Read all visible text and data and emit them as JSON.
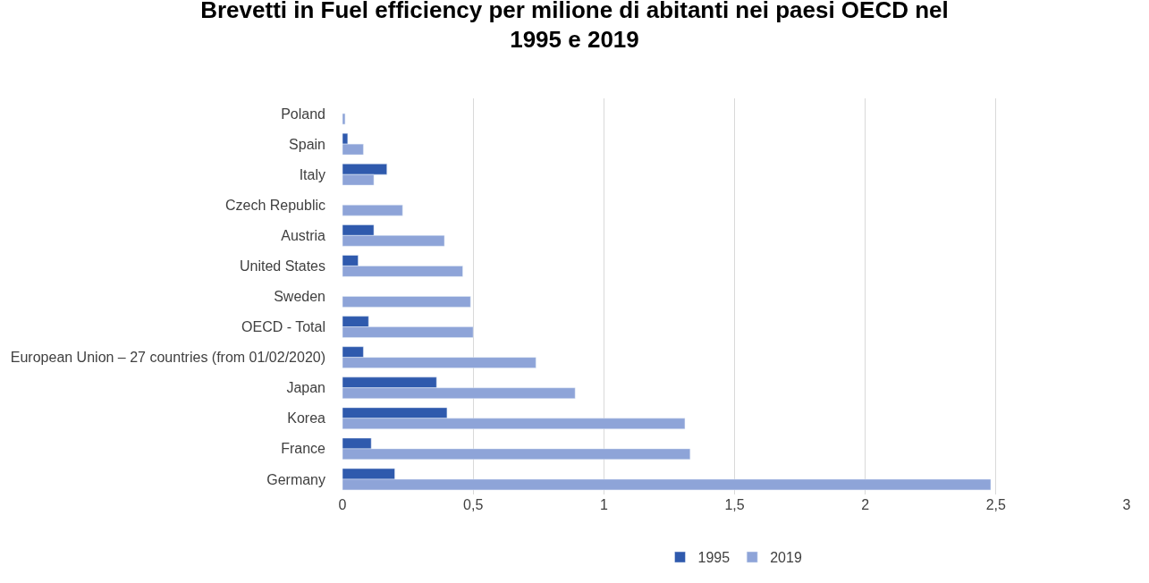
{
  "chart_data": {
    "type": "bar",
    "orientation": "horizontal",
    "title": "Brevetti in Fuel efficiency per milione di abitanti nei paesi OECD nel 1995 e 2019",
    "categories": [
      "Poland",
      "Spain",
      "Italy",
      "Czech Republic",
      "Austria",
      "United States",
      "Sweden",
      "OECD - Total",
      "European Union – 27 countries (from 01/02/2020)",
      "Japan",
      "Korea",
      "France",
      "Germany"
    ],
    "series": [
      {
        "name": "1995",
        "color": "#2f5aad",
        "values": [
          null,
          0.02,
          0.17,
          null,
          0.12,
          0.06,
          null,
          0.1,
          0.08,
          0.36,
          0.4,
          0.11,
          0.2
        ]
      },
      {
        "name": "2019",
        "color": "#8ea4d8",
        "values": [
          0.01,
          0.08,
          0.12,
          0.23,
          0.39,
          0.46,
          0.49,
          0.5,
          0.74,
          0.89,
          1.31,
          1.33,
          2.48
        ]
      }
    ],
    "xlim": [
      0,
      3
    ],
    "xticks": [
      0,
      {
        "value": 0.5,
        "label": "0,5"
      },
      1,
      {
        "value": 1.5,
        "label": "1,5"
      },
      2,
      {
        "value": 2.5,
        "label": "2,5"
      },
      3
    ],
    "grid": "x",
    "legend": "bottom"
  }
}
